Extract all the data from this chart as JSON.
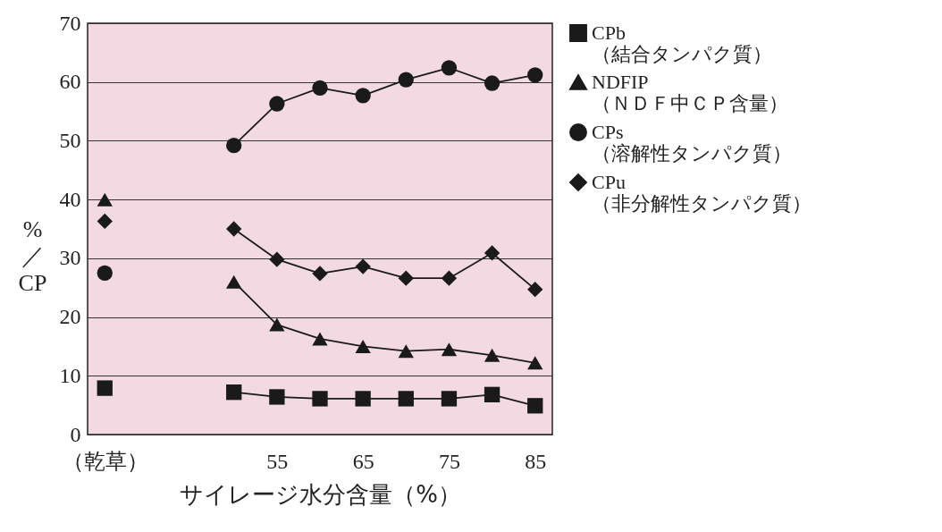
{
  "chart_data": {
    "type": "line",
    "xlabel": "サイレージ水分含量（%）",
    "ylabel": "%／CP",
    "categories": [
      "（乾草）",
      null,
      null,
      null,
      "55",
      null,
      "65",
      null,
      "75",
      null,
      "85"
    ],
    "series": [
      {
        "name": "CPb\n（結合タンパク質）",
        "color": "#1a1a1a",
        "marker": "square",
        "values": [
          7.9,
          null,
          null,
          7.2,
          6.4,
          6.1,
          6.1,
          6.1,
          6.1,
          6.8,
          4.9
        ]
      },
      {
        "name": "NDFIP\n（ＮＤＦ中ＣＰ含量）",
        "color": "#1a1a1a",
        "marker": "triangle",
        "values": [
          40,
          null,
          null,
          26,
          18.7,
          16.3,
          15,
          14.2,
          14.5,
          13.5,
          12.2
        ]
      },
      {
        "name": "CPs\n（溶解性タンパク質）",
        "color": "#1a1a1a",
        "marker": "circle",
        "values": [
          27.5,
          null,
          null,
          49.2,
          56.3,
          59,
          57.7,
          60.4,
          62.4,
          59.8,
          61.2
        ]
      },
      {
        "name": "CPu\n（非分解性タンパク質）",
        "color": "#1a1a1a",
        "marker": "diamond",
        "values": [
          36.3,
          null,
          null,
          35,
          29.8,
          27.4,
          28.6,
          26.6,
          26.6,
          30.9,
          24.7
        ]
      }
    ],
    "ylim": [
      0,
      70
    ],
    "yticks": [
      0,
      10,
      20,
      30,
      40,
      50,
      60,
      70
    ],
    "grid": "y",
    "legend": "top right"
  }
}
